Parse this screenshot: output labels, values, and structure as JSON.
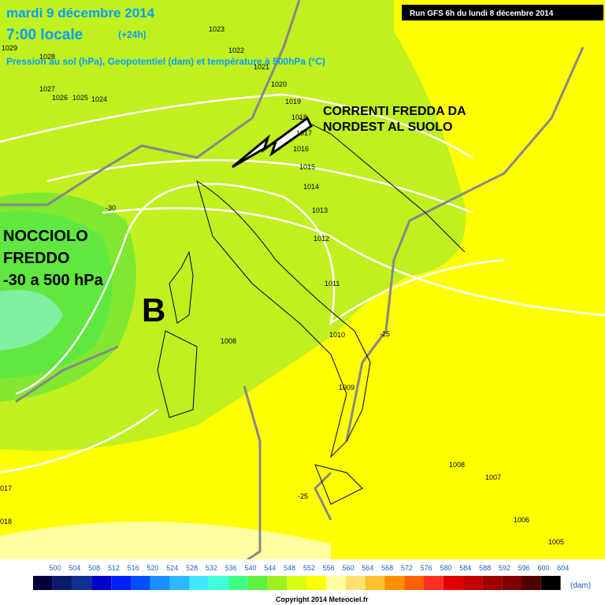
{
  "header": {
    "title": "mardi 9 décembre 2014",
    "time": "7:00 locale",
    "offset": "(+24h)",
    "subtitle": "Pression au sol (hPa), Geopotentiel (dam) et température à 500hPa (°C)",
    "run": "Run GFS 6h du lundi 8 décembre 2014"
  },
  "annotations": {
    "cold_flow": [
      "CORRENTI FREDDA DA",
      "NORDEST AL SUOLO"
    ],
    "cold_core": [
      "NOCCIOLO",
      "FREDDO",
      "-30 a 500 hPa"
    ],
    "low": "B"
  },
  "isobars": [
    "1023",
    "1022",
    "1021",
    "1020",
    "1019",
    "1018",
    "1017",
    "1016",
    "1015",
    "1014",
    "1013",
    "1012",
    "1011",
    "1010",
    "1009",
    "1008",
    "1008",
    "1007",
    "1006",
    "1005",
    "1029",
    "1028",
    "1027",
    "1026",
    "1025",
    "1024",
    "017",
    "018"
  ],
  "isotherms": [
    "-30",
    "-25",
    "-25"
  ],
  "legend": {
    "labels": [
      "500",
      "504",
      "508",
      "512",
      "516",
      "520",
      "524",
      "528",
      "532",
      "536",
      "540",
      "544",
      "548",
      "552",
      "556",
      "560",
      "564",
      "568",
      "572",
      "576",
      "580",
      "584",
      "588",
      "592",
      "596",
      "600",
      "604"
    ],
    "colors": [
      "#00003c",
      "#0a1a6a",
      "#10308f",
      "#0000c8",
      "#0020ff",
      "#0050ff",
      "#1890ff",
      "#30b8ff",
      "#40e8ff",
      "#40ffd8",
      "#40ff80",
      "#60f040",
      "#a0f020",
      "#d8ff10",
      "#ffff00",
      "#ffffa0",
      "#ffe070",
      "#ffc030",
      "#ff9000",
      "#ff6000",
      "#ff3020",
      "#e00000",
      "#c00000",
      "#a00000",
      "#800000",
      "#500000",
      "#000000"
    ],
    "unit": "(dam)"
  },
  "copyright": "Copyright 2014 Meteociel.fr"
}
